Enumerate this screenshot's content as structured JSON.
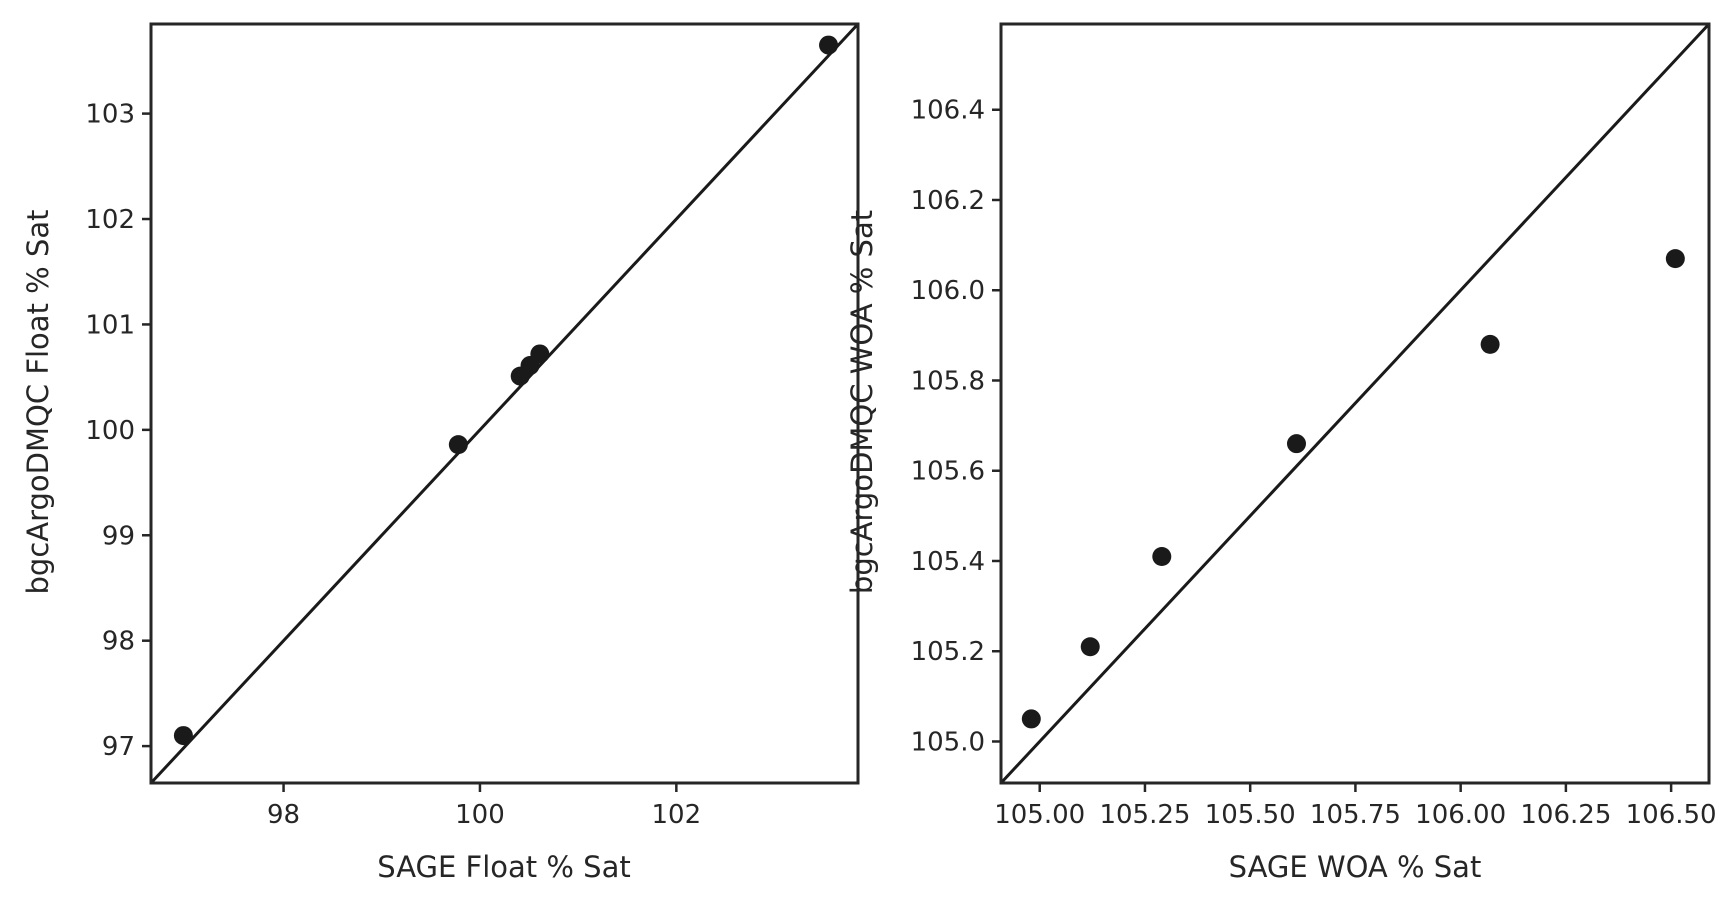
{
  "chart_data": [
    {
      "type": "scatter",
      "xlabel": "SAGE Float % Sat",
      "ylabel": "bgcArgoDMQC Float % Sat",
      "xlim": [
        96.65,
        103.85
      ],
      "ylim": [
        96.65,
        103.85
      ],
      "xticks": [
        98,
        100,
        102
      ],
      "xtick_labels": [
        "98",
        "100",
        "102"
      ],
      "yticks": [
        97,
        98,
        99,
        100,
        101,
        102,
        103
      ],
      "ytick_labels": [
        "97",
        "98",
        "99",
        "100",
        "101",
        "102",
        "103"
      ],
      "grid": false,
      "reference_line": "y = x",
      "marker_color": "#1a1a1a",
      "points": [
        {
          "x": 96.98,
          "y": 97.1
        },
        {
          "x": 99.78,
          "y": 99.86
        },
        {
          "x": 100.41,
          "y": 100.51
        },
        {
          "x": 100.51,
          "y": 100.61
        },
        {
          "x": 100.61,
          "y": 100.72
        },
        {
          "x": 103.55,
          "y": 103.65
        }
      ]
    },
    {
      "type": "scatter",
      "xlabel": "SAGE WOA % Sat",
      "ylabel": "bgcArgoDMQC WOA % Sat",
      "xlim": [
        104.908,
        106.59
      ],
      "ylim": [
        104.908,
        106.59
      ],
      "xticks": [
        105.0,
        105.25,
        105.5,
        105.75,
        106.0,
        106.25,
        106.5
      ],
      "xtick_labels": [
        "105.00",
        "105.25",
        "105.50",
        "105.75",
        "106.00",
        "106.25",
        "106.50"
      ],
      "yticks": [
        105.0,
        105.2,
        105.4,
        105.6,
        105.8,
        106.0,
        106.2,
        106.4
      ],
      "ytick_labels": [
        "105.0",
        "105.2",
        "105.4",
        "105.6",
        "105.8",
        "106.0",
        "106.2",
        "106.4"
      ],
      "grid": false,
      "reference_line": "y = x",
      "marker_color": "#1a1a1a",
      "points": [
        {
          "x": 104.98,
          "y": 105.05
        },
        {
          "x": 105.12,
          "y": 105.21
        },
        {
          "x": 105.29,
          "y": 105.41
        },
        {
          "x": 105.61,
          "y": 105.66
        },
        {
          "x": 106.07,
          "y": 105.88
        },
        {
          "x": 106.51,
          "y": 106.07
        }
      ]
    }
  ]
}
